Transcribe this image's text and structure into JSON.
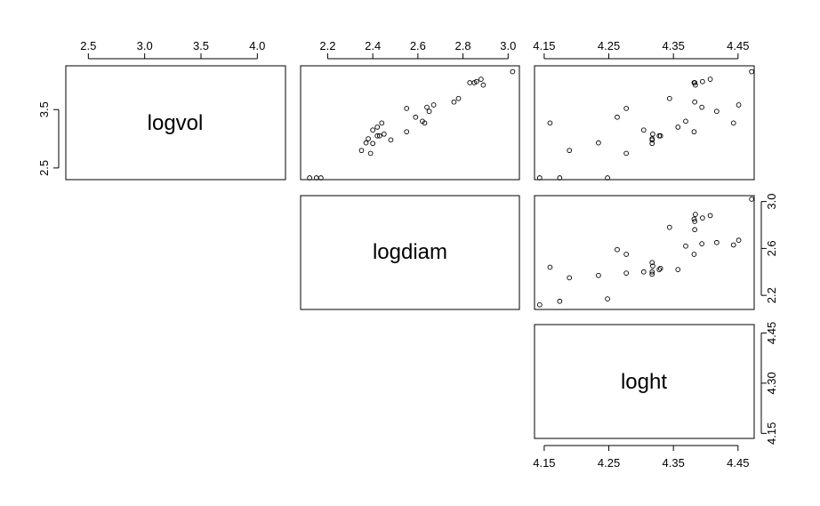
{
  "chart_data": {
    "type": "scatter",
    "title": "",
    "variables": [
      "logvol",
      "logdiam",
      "loght"
    ],
    "axes": {
      "logvol": {
        "lim": [
          2.3,
          4.25
        ],
        "ticks": [
          "2.5",
          "3.0",
          "3.5",
          "4.0"
        ],
        "tick_values": [
          2.5,
          3.0,
          3.5,
          4.0
        ],
        "left_ticks": [
          "2.5",
          "3.5"
        ],
        "left_tick_values": [
          2.5,
          3.5
        ]
      },
      "logdiam": {
        "lim": [
          2.08,
          3.05
        ],
        "ticks": [
          "2.2",
          "2.4",
          "2.6",
          "2.8",
          "3.0"
        ],
        "tick_values": [
          2.2,
          2.4,
          2.6,
          2.8,
          3.0
        ],
        "right_ticks": [
          "2.2",
          "2.6",
          "3.0"
        ],
        "right_tick_values": [
          2.2,
          2.6,
          3.0
        ]
      },
      "loght": {
        "lim": [
          4.135,
          4.475
        ],
        "ticks": [
          "4.15",
          "4.25",
          "4.35",
          "4.45"
        ],
        "tick_values": [
          4.15,
          4.25,
          4.35,
          4.45
        ],
        "right_ticks": [
          "4.15",
          "4.30",
          "4.45"
        ],
        "right_tick_values": [
          4.15,
          4.3,
          4.45
        ]
      }
    },
    "observations": [
      {
        "logvol": 2.33,
        "logdiam": 2.12,
        "loght": 4.143
      },
      {
        "logvol": 2.33,
        "logdiam": 2.15,
        "loght": 4.174
      },
      {
        "logvol": 2.33,
        "logdiam": 2.17,
        "loght": 4.248
      },
      {
        "logvol": 2.8,
        "logdiam": 2.35,
        "loght": 4.189
      },
      {
        "logvol": 2.93,
        "logdiam": 2.37,
        "loght": 4.234
      },
      {
        "logvol": 3.0,
        "logdiam": 2.38,
        "loght": 4.317
      },
      {
        "logvol": 2.75,
        "logdiam": 2.39,
        "loght": 4.277
      },
      {
        "logvol": 3.15,
        "logdiam": 2.4,
        "loght": 4.304
      },
      {
        "logvol": 2.92,
        "logdiam": 2.4,
        "loght": 4.317
      },
      {
        "logvol": 3.05,
        "logdiam": 2.42,
        "loght": 4.328
      },
      {
        "logvol": 3.05,
        "logdiam": 2.43,
        "loght": 4.33
      },
      {
        "logvol": 3.2,
        "logdiam": 2.42,
        "loght": 4.357
      },
      {
        "logvol": 3.27,
        "logdiam": 2.44,
        "loght": 4.159
      },
      {
        "logvol": 3.08,
        "logdiam": 2.45,
        "loght": 4.318
      },
      {
        "logvol": 2.98,
        "logdiam": 2.48,
        "loght": 4.317
      },
      {
        "logvol": 3.12,
        "logdiam": 2.55,
        "loght": 4.382
      },
      {
        "logvol": 3.52,
        "logdiam": 2.55,
        "loght": 4.277
      },
      {
        "logvol": 3.37,
        "logdiam": 2.59,
        "loght": 4.263
      },
      {
        "logvol": 3.3,
        "logdiam": 2.62,
        "loght": 4.369
      },
      {
        "logvol": 3.27,
        "logdiam": 2.63,
        "loght": 4.443
      },
      {
        "logvol": 3.54,
        "logdiam": 2.64,
        "loght": 4.394
      },
      {
        "logvol": 3.47,
        "logdiam": 2.65,
        "loght": 4.417
      },
      {
        "logvol": 3.58,
        "logdiam": 2.67,
        "loght": 4.451
      },
      {
        "logvol": 3.63,
        "logdiam": 2.76,
        "loght": 4.383
      },
      {
        "logvol": 3.69,
        "logdiam": 2.78,
        "loght": 4.344
      },
      {
        "logvol": 3.96,
        "logdiam": 2.83,
        "loght": 4.383
      },
      {
        "logvol": 3.96,
        "logdiam": 2.85,
        "loght": 4.382
      },
      {
        "logvol": 3.98,
        "logdiam": 2.86,
        "loght": 4.395
      },
      {
        "logvol": 3.92,
        "logdiam": 2.89,
        "loght": 4.384
      },
      {
        "logvol": 4.02,
        "logdiam": 2.88,
        "loght": 4.407
      },
      {
        "logvol": 4.15,
        "logdiam": 3.02,
        "loght": 4.471
      }
    ]
  }
}
